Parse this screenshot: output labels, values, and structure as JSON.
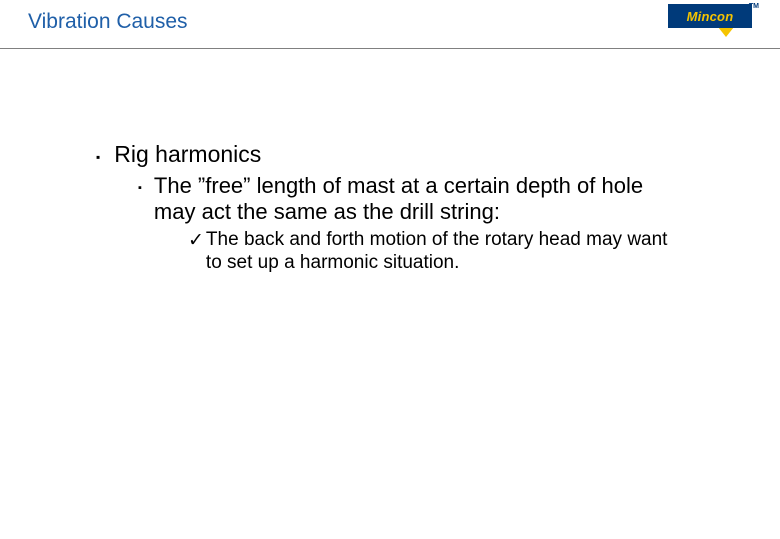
{
  "header": {
    "title": "Vibration Causes",
    "title_color": "#1f5fa8",
    "title_fontsize": 21
  },
  "logo": {
    "text": "Mincon",
    "box_bg": "#003a7a",
    "text_color": "#f5c400",
    "arrow_color": "#f5c400",
    "tm": "TM"
  },
  "divider_color": "#808080",
  "background_color": "#ffffff",
  "content": {
    "lvl1": {
      "bullet": "▪",
      "text": "Rig harmonics",
      "fontsize": 23
    },
    "lvl2": {
      "bullet": "▪",
      "text": "The ”free” length of mast at a certain depth of hole may act the same as the drill string:",
      "fontsize": 22
    },
    "lvl3": {
      "check": "✓",
      "text": "The back and forth motion of the rotary head may want to set up a harmonic situation.",
      "fontsize": 19
    }
  }
}
